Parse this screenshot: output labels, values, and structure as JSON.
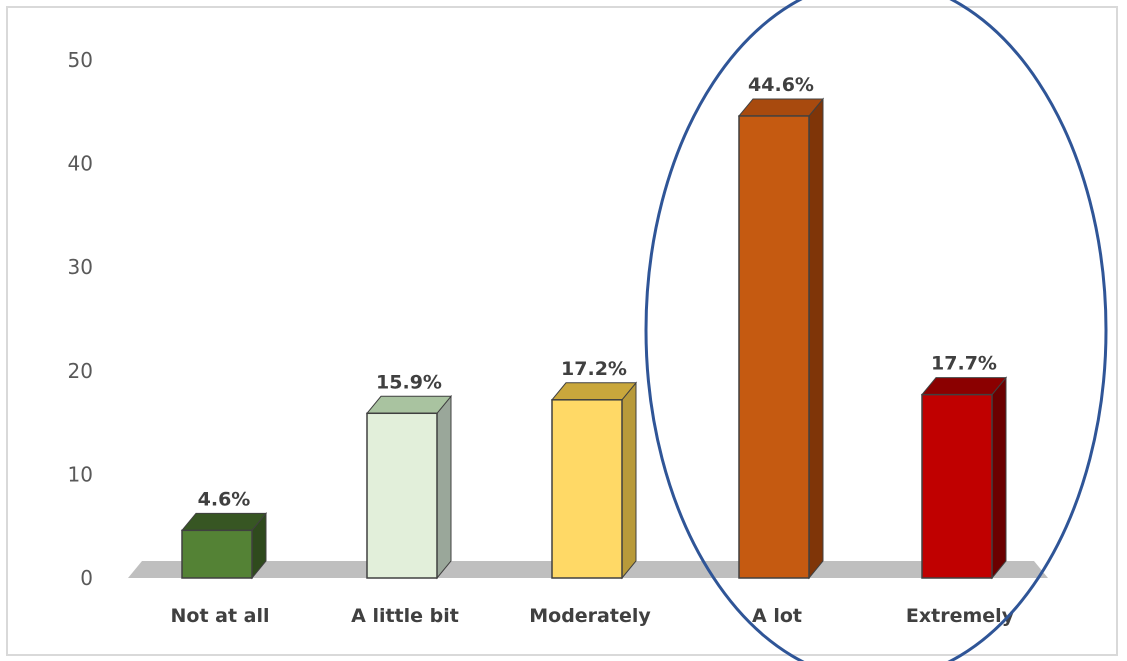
{
  "chart_data": {
    "type": "bar",
    "categories": [
      "Not at all",
      "A little bit",
      "Moderately",
      "A lot",
      "Extremely"
    ],
    "values": [
      4.6,
      15.9,
      17.2,
      44.6,
      17.7
    ],
    "data_labels": [
      "4.6%",
      "15.9%",
      "17.2%",
      "44.6%",
      "17.7%"
    ],
    "yticks": [
      "0",
      "10",
      "20",
      "30",
      "40",
      "50"
    ],
    "ylim": [
      0,
      50
    ],
    "title": "",
    "xlabel": "",
    "ylabel": "",
    "style": "3d-column",
    "grid": false,
    "legend": "none",
    "annotation": "ellipse around A lot and Extremely",
    "colors": {
      "front": [
        "#548235",
        "#e2efda",
        "#ffd966",
        "#c55a11",
        "#c00000"
      ],
      "top": [
        "#375623",
        "#a9c3a0",
        "#c9a73c",
        "#a84a0e",
        "#8b0000"
      ],
      "side": [
        "#2f4a1d",
        "#9aa79a",
        "#b89a3a",
        "#7f3508",
        "#6b0000"
      ],
      "floor": "#bfbfbf",
      "ellipse": "#2f5597",
      "frame": "#d9d9d9"
    }
  }
}
